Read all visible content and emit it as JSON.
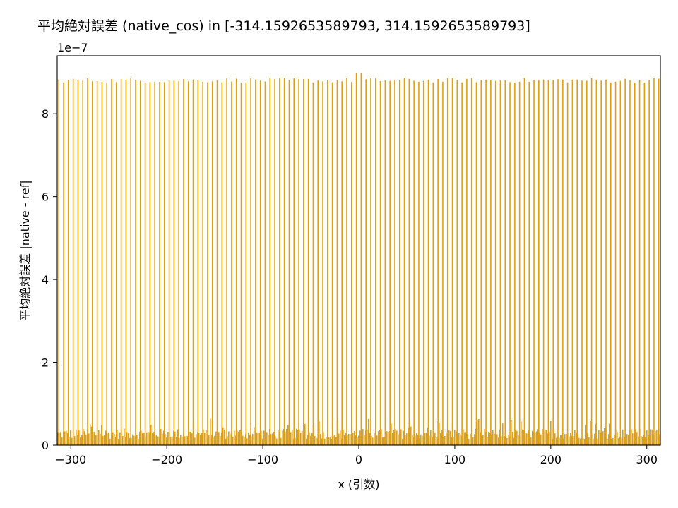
{
  "chart_data": {
    "type": "bar",
    "title": "平均絶対誤差 (native_cos) in [-314.1592653589793, 314.1592653589793]",
    "xlabel": "x (引数)",
    "ylabel": "平均絶対誤差 |native - ref|",
    "offset_text": "1e−7",
    "xlim": [
      -314.1592653589793,
      314.1592653589793
    ],
    "ylim": [
      0,
      9.4e-07
    ],
    "x_ticks": [
      -300,
      -200,
      -100,
      0,
      100,
      200,
      300
    ],
    "x_tick_labels": [
      "−300",
      "−200",
      "−100",
      "0",
      "100",
      "200",
      "300"
    ],
    "y_ticks": [
      0,
      2e-07,
      4e-07,
      6e-07,
      8e-07
    ],
    "y_tick_labels": [
      "0",
      "2",
      "4",
      "6",
      "8"
    ],
    "bar_color": "#e69f00",
    "grid": false,
    "series": [
      {
        "description_values": "spike_bars",
        "values": {
          "x_start": -312.5,
          "x_step": 5,
          "count": 126,
          "height_base": 8.8e-07,
          "height_range": [
            8.75e-07,
            8.98e-07
          ]
        }
      }
    ],
    "baseline_noise": {
      "typical_range": [
        1.5e-08,
        6.5e-08
      ]
    }
  }
}
